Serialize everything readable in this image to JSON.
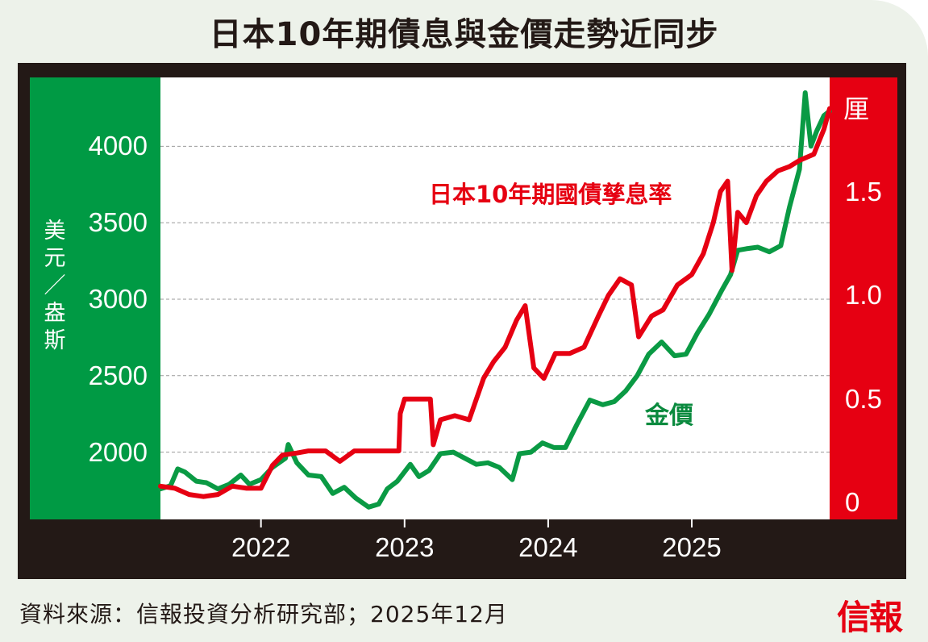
{
  "title": "日本10年期債息與金價走勢近同步",
  "source": "資料來源：信報投資分析研究部；2025年12月",
  "logo_text": "信報",
  "colors": {
    "gold_series": "#0a9a44",
    "jgb_series": "#e60012",
    "left_band": "#009a44",
    "right_band": "#e60012",
    "frame": "#231916",
    "gridline": "#9a9a9a"
  },
  "chart_data": {
    "type": "line",
    "grid": true,
    "x_axis": {
      "ticks": [
        "2022",
        "2023",
        "2024",
        "2025"
      ],
      "range": [
        2021.3,
        2025.96
      ]
    },
    "y_left": {
      "label": "美元／盎斯",
      "ticks": [
        "4000",
        "3500",
        "3000",
        "2500",
        "2000"
      ],
      "range": [
        1560,
        4450
      ]
    },
    "y_right": {
      "label": "厘",
      "ticks": [
        "1.5",
        "1.0",
        "0.5",
        "0"
      ],
      "range": [
        -0.08,
        2.05
      ]
    },
    "series": [
      {
        "name": "金價",
        "axis": "left",
        "points": [
          [
            2021.3,
            1760
          ],
          [
            2021.37,
            1780
          ],
          [
            2021.42,
            1890
          ],
          [
            2021.47,
            1870
          ],
          [
            2021.55,
            1810
          ],
          [
            2021.62,
            1800
          ],
          [
            2021.7,
            1760
          ],
          [
            2021.78,
            1790
          ],
          [
            2021.86,
            1850
          ],
          [
            2021.92,
            1790
          ],
          [
            2022.0,
            1820
          ],
          [
            2022.08,
            1900
          ],
          [
            2022.17,
            1960
          ],
          [
            2022.19,
            2050
          ],
          [
            2022.25,
            1930
          ],
          [
            2022.33,
            1850
          ],
          [
            2022.42,
            1840
          ],
          [
            2022.5,
            1730
          ],
          [
            2022.58,
            1770
          ],
          [
            2022.66,
            1700
          ],
          [
            2022.75,
            1640
          ],
          [
            2022.82,
            1660
          ],
          [
            2022.88,
            1760
          ],
          [
            2022.95,
            1810
          ],
          [
            2023.04,
            1920
          ],
          [
            2023.1,
            1840
          ],
          [
            2023.17,
            1880
          ],
          [
            2023.25,
            1990
          ],
          [
            2023.34,
            2000
          ],
          [
            2023.42,
            1960
          ],
          [
            2023.5,
            1920
          ],
          [
            2023.58,
            1930
          ],
          [
            2023.66,
            1900
          ],
          [
            2023.75,
            1820
          ],
          [
            2023.8,
            1990
          ],
          [
            2023.88,
            2000
          ],
          [
            2023.96,
            2060
          ],
          [
            2024.04,
            2030
          ],
          [
            2024.12,
            2030
          ],
          [
            2024.2,
            2180
          ],
          [
            2024.29,
            2340
          ],
          [
            2024.38,
            2310
          ],
          [
            2024.46,
            2330
          ],
          [
            2024.54,
            2400
          ],
          [
            2024.62,
            2500
          ],
          [
            2024.7,
            2640
          ],
          [
            2024.79,
            2720
          ],
          [
            2024.88,
            2630
          ],
          [
            2024.96,
            2640
          ],
          [
            2025.04,
            2780
          ],
          [
            2025.12,
            2900
          ],
          [
            2025.21,
            3060
          ],
          [
            2025.27,
            3160
          ],
          [
            2025.32,
            3320
          ],
          [
            2025.38,
            3330
          ],
          [
            2025.46,
            3340
          ],
          [
            2025.54,
            3310
          ],
          [
            2025.62,
            3350
          ],
          [
            2025.68,
            3600
          ],
          [
            2025.75,
            3850
          ],
          [
            2025.79,
            4350
          ],
          [
            2025.83,
            4000
          ],
          [
            2025.87,
            4100
          ],
          [
            2025.92,
            4200
          ],
          [
            2025.96,
            4230
          ]
        ]
      },
      {
        "name": "日本10年期國債孳息率",
        "axis": "right",
        "points": [
          [
            2021.3,
            0.08
          ],
          [
            2021.4,
            0.07
          ],
          [
            2021.5,
            0.04
          ],
          [
            2021.6,
            0.03
          ],
          [
            2021.7,
            0.04
          ],
          [
            2021.8,
            0.08
          ],
          [
            2021.9,
            0.07
          ],
          [
            2022.0,
            0.07
          ],
          [
            2022.08,
            0.18
          ],
          [
            2022.15,
            0.23
          ],
          [
            2022.25,
            0.24
          ],
          [
            2022.33,
            0.25
          ],
          [
            2022.45,
            0.25
          ],
          [
            2022.55,
            0.2
          ],
          [
            2022.65,
            0.25
          ],
          [
            2022.75,
            0.25
          ],
          [
            2022.85,
            0.25
          ],
          [
            2022.96,
            0.25
          ],
          [
            2022.97,
            0.43
          ],
          [
            2023.0,
            0.5
          ],
          [
            2023.1,
            0.5
          ],
          [
            2023.18,
            0.5
          ],
          [
            2023.2,
            0.28
          ],
          [
            2023.25,
            0.4
          ],
          [
            2023.35,
            0.42
          ],
          [
            2023.45,
            0.4
          ],
          [
            2023.55,
            0.6
          ],
          [
            2023.62,
            0.68
          ],
          [
            2023.7,
            0.75
          ],
          [
            2023.78,
            0.88
          ],
          [
            2023.84,
            0.95
          ],
          [
            2023.9,
            0.65
          ],
          [
            2023.97,
            0.6
          ],
          [
            2024.05,
            0.72
          ],
          [
            2024.15,
            0.72
          ],
          [
            2024.25,
            0.75
          ],
          [
            2024.35,
            0.9
          ],
          [
            2024.42,
            1.0
          ],
          [
            2024.5,
            1.08
          ],
          [
            2024.58,
            1.05
          ],
          [
            2024.63,
            0.8
          ],
          [
            2024.72,
            0.9
          ],
          [
            2024.8,
            0.93
          ],
          [
            2024.9,
            1.05
          ],
          [
            2025.0,
            1.1
          ],
          [
            2025.08,
            1.2
          ],
          [
            2025.15,
            1.35
          ],
          [
            2025.2,
            1.5
          ],
          [
            2025.25,
            1.55
          ],
          [
            2025.28,
            1.12
          ],
          [
            2025.32,
            1.4
          ],
          [
            2025.38,
            1.35
          ],
          [
            2025.45,
            1.48
          ],
          [
            2025.52,
            1.55
          ],
          [
            2025.6,
            1.6
          ],
          [
            2025.68,
            1.62
          ],
          [
            2025.75,
            1.65
          ],
          [
            2025.85,
            1.68
          ],
          [
            2025.92,
            1.8
          ],
          [
            2025.96,
            1.9
          ]
        ]
      }
    ]
  }
}
